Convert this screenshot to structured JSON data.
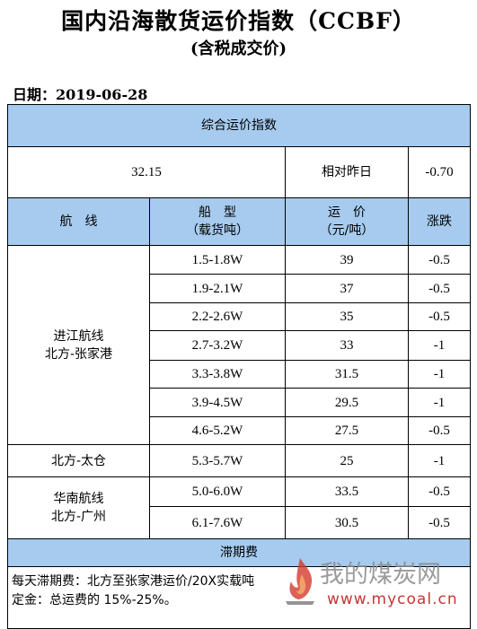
{
  "header": {
    "title": "国内沿海散货运价指数（CCBF）",
    "subtitle": "(含税成交价)",
    "date": "日期：2019-06-28"
  },
  "composite": {
    "label": "综合运价指数",
    "value": "32.15",
    "change_label": "相对昨日",
    "change_value": "-0.70"
  },
  "columns": {
    "route": "航　线",
    "ship_type_line1": "船　型",
    "ship_type_line2": "（载货吨）",
    "freight_line1": "运　价",
    "freight_line2": "（元/吨）",
    "change": "涨跌"
  },
  "groups": [
    {
      "route_line1": "进江航线",
      "route_line2": "北方-张家港",
      "rows": [
        {
          "ship": "1.5-1.8W",
          "price": "39",
          "change": "-0.5"
        },
        {
          "ship": "1.9-2.1W",
          "price": "37",
          "change": "-0.5"
        },
        {
          "ship": "2.2-2.6W",
          "price": "35",
          "change": "-0.5"
        },
        {
          "ship": "2.7-3.2W",
          "price": "33",
          "change": "-1"
        },
        {
          "ship": "3.3-3.8W",
          "price": "31.5",
          "change": "-1"
        },
        {
          "ship": "3.9-4.5W",
          "price": "29.5",
          "change": "-1"
        },
        {
          "ship": "4.6-5.2W",
          "price": "27.5",
          "change": "-0.5"
        }
      ]
    },
    {
      "route_line1": "北方-太仓",
      "rows": [
        {
          "ship": "5.3-5.7W",
          "price": "25",
          "change": "-1"
        }
      ]
    },
    {
      "route_line1": "华南航线",
      "route_line2": "北方-广州",
      "rows": [
        {
          "ship": "5.0-6.0W",
          "price": "33.5",
          "change": "-0.5"
        },
        {
          "ship": "6.1-7.6W",
          "price": "30.5",
          "change": "-0.5"
        }
      ]
    }
  ],
  "demurrage": {
    "label": "滞期费",
    "line1": "每天滞期费：北方至张家港运价/20X实载吨",
    "line2": "定金：总运费的 15%-25%。"
  },
  "watermark": {
    "text": "我的煤炭网",
    "url": "www.mycoal.cn"
  }
}
